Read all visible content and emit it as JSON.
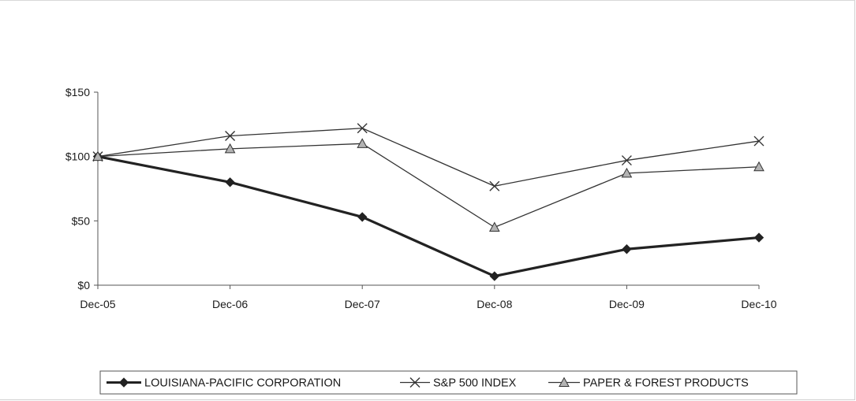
{
  "chart_data": {
    "type": "line",
    "categories": [
      "Dec-05",
      "Dec-06",
      "Dec-07",
      "Dec-08",
      "Dec-09",
      "Dec-10"
    ],
    "y_ticks": [
      "$0",
      "$50",
      "$100",
      "$150"
    ],
    "y_tick_values": [
      0,
      50,
      100,
      150
    ],
    "ylim": [
      0,
      150
    ],
    "grid": false,
    "legend_position": "bottom",
    "series": [
      {
        "name": "LOUISIANA-PACIFIC CORPORATION",
        "marker": "diamond",
        "values": [
          100,
          80,
          53,
          7,
          28,
          37
        ],
        "color": "#222222"
      },
      {
        "name": "S&P 500 INDEX",
        "marker": "x",
        "values": [
          100,
          116,
          122,
          77,
          97,
          112
        ],
        "color": "#333333"
      },
      {
        "name": "PAPER & FOREST PRODUCTS",
        "marker": "triangle",
        "values": [
          100,
          106,
          110,
          45,
          87,
          92
        ],
        "color": "#333333"
      }
    ]
  }
}
